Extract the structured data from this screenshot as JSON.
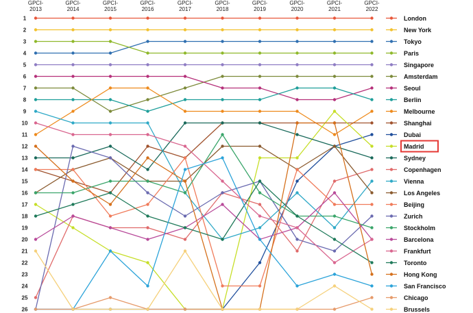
{
  "chart_data": {
    "type": "line",
    "x": [
      "GPCI-\n2013",
      "GPCI-\n2014",
      "GPCI-\n2015",
      "GPCI-\n2016",
      "GPCI-\n2017",
      "GPCI-\n2018",
      "GPCI-\n2019",
      "GPCI-\n2020",
      "GPCI-\n2021",
      "GPCI-\n2022"
    ],
    "x_labels": [
      {
        "line1": "GPCI-",
        "line2": "2013"
      },
      {
        "line1": "GPCI-",
        "line2": "2014"
      },
      {
        "line1": "GPCI-",
        "line2": "2015"
      },
      {
        "line1": "GPCI-",
        "line2": "2016"
      },
      {
        "line1": "GPCI-",
        "line2": "2017"
      },
      {
        "line1": "GPCI-",
        "line2": "2018"
      },
      {
        "line1": "GPCI-",
        "line2": "2019"
      },
      {
        "line1": "GPCI-",
        "line2": "2020"
      },
      {
        "line1": "GPCI-",
        "line2": "2021"
      },
      {
        "line1": "GPCI-",
        "line2": "2022"
      }
    ],
    "y_ticks": [
      "1",
      "2",
      "3",
      "4",
      "5",
      "6",
      "7",
      "8",
      "9",
      "10",
      "11",
      "12",
      "13",
      "14",
      "15",
      "16",
      "17",
      "18",
      "19",
      "20",
      "21",
      "22",
      "23",
      "24",
      "25",
      "26"
    ],
    "ylim": [
      1,
      26
    ],
    "y_inverted": true,
    "grid": false,
    "legend_position": "right",
    "highlight": "Madrid",
    "highlight_color": "#e53935",
    "series": [
      {
        "name": "London",
        "color": "#e8573a",
        "values": [
          1,
          1,
          1,
          1,
          1,
          1,
          1,
          1,
          1,
          1
        ]
      },
      {
        "name": "New York",
        "color": "#f2c12e",
        "values": [
          2,
          2,
          2,
          2,
          2,
          2,
          2,
          2,
          2,
          2
        ]
      },
      {
        "name": "Tokyo",
        "color": "#2f6fb0",
        "values": [
          4,
          4,
          4,
          3,
          3,
          3,
          3,
          3,
          3,
          3
        ]
      },
      {
        "name": "Paris",
        "color": "#8fb82b",
        "values": [
          3,
          3,
          3,
          4,
          4,
          4,
          4,
          4,
          4,
          4
        ]
      },
      {
        "name": "Singapore",
        "color": "#8e7cc3",
        "values": [
          5,
          5,
          5,
          5,
          5,
          5,
          5,
          5,
          5,
          5
        ]
      },
      {
        "name": "Amsterdam",
        "color": "#7c8a3a",
        "values": [
          7,
          7,
          9,
          8,
          7,
          6,
          6,
          6,
          6,
          6
        ]
      },
      {
        "name": "Seoul",
        "color": "#b5307a",
        "values": [
          6,
          6,
          6,
          6,
          6,
          7,
          7,
          8,
          8,
          7
        ]
      },
      {
        "name": "Berlin",
        "color": "#1e9e9a",
        "values": [
          8,
          8,
          8,
          9,
          8,
          8,
          8,
          7,
          7,
          8
        ]
      },
      {
        "name": "Melbourne",
        "color": "#ee8a1c",
        "values": [
          11,
          9,
          7,
          7,
          9,
          9,
          9,
          9,
          11,
          9
        ]
      },
      {
        "name": "Shanghai",
        "color": "#a0522d",
        "values": [
          14,
          15,
          16,
          12,
          13,
          10,
          10,
          10,
          10,
          10
        ]
      },
      {
        "name": "Dubai",
        "color": "#1f4e9c",
        "values": [
          26,
          26,
          26,
          26,
          26,
          26,
          22,
          15,
          12,
          11
        ]
      },
      {
        "name": "Madrid",
        "color": "#c6de27",
        "values": [
          17,
          19,
          21,
          22,
          26,
          26,
          13,
          13,
          9,
          12
        ]
      },
      {
        "name": "Sydney",
        "color": "#19695a",
        "values": [
          13,
          13,
          12,
          14,
          10,
          10,
          10,
          11,
          12,
          13
        ]
      },
      {
        "name": "Copenhagen",
        "color": "#e06a6a",
        "values": [
          25,
          18,
          19,
          19,
          20,
          16,
          17,
          21,
          15,
          14
        ]
      },
      {
        "name": "Vienna",
        "color": "#2fa9c7",
        "values": [
          9,
          10,
          10,
          10,
          16,
          20,
          19,
          16,
          19,
          15
        ]
      },
      {
        "name": "Los Angeles",
        "color": "#8a5a2e",
        "values": [
          16,
          14,
          13,
          15,
          15,
          12,
          12,
          14,
          12,
          16
        ]
      },
      {
        "name": "Beijing",
        "color": "#f07b5a",
        "values": [
          14,
          14,
          18,
          17,
          13,
          24,
          24,
          14,
          17,
          17
        ]
      },
      {
        "name": "Zurich",
        "color": "#6a6ab0",
        "values": [
          26,
          12,
          13,
          16,
          18,
          16,
          15,
          20,
          21,
          18
        ]
      },
      {
        "name": "Stockholm",
        "color": "#3aa56a",
        "values": [
          16,
          16,
          15,
          15,
          16,
          11,
          16,
          18,
          18,
          19
        ]
      },
      {
        "name": "Barcelona",
        "color": "#b84a9a",
        "values": [
          20,
          18,
          19,
          20,
          19,
          17,
          20,
          19,
          16,
          20
        ]
      },
      {
        "name": "Frankfurt",
        "color": "#d9668f",
        "values": [
          10,
          11,
          11,
          11,
          12,
          15,
          18,
          19,
          22,
          20
        ]
      },
      {
        "name": "Toronto",
        "color": "#1f7a5a",
        "values": [
          18,
          17,
          16,
          18,
          19,
          20,
          15,
          18,
          20,
          22
        ]
      },
      {
        "name": "Hong Kong",
        "color": "#d5701c",
        "values": [
          12,
          15,
          17,
          13,
          15,
          26,
          26,
          10,
          10,
          23
        ]
      },
      {
        "name": "San Francisco",
        "color": "#2ba3d9",
        "values": [
          26,
          26,
          21,
          24,
          14,
          13,
          20,
          24,
          23,
          24
        ]
      },
      {
        "name": "Chicago",
        "color": "#e69a6a",
        "values": [
          26,
          26,
          25,
          26,
          26,
          26,
          26,
          26,
          26,
          25
        ]
      },
      {
        "name": "Brussels",
        "color": "#f5d07a",
        "values": [
          21,
          26,
          26,
          26,
          21,
          26,
          26,
          26,
          24,
          26
        ]
      }
    ]
  }
}
